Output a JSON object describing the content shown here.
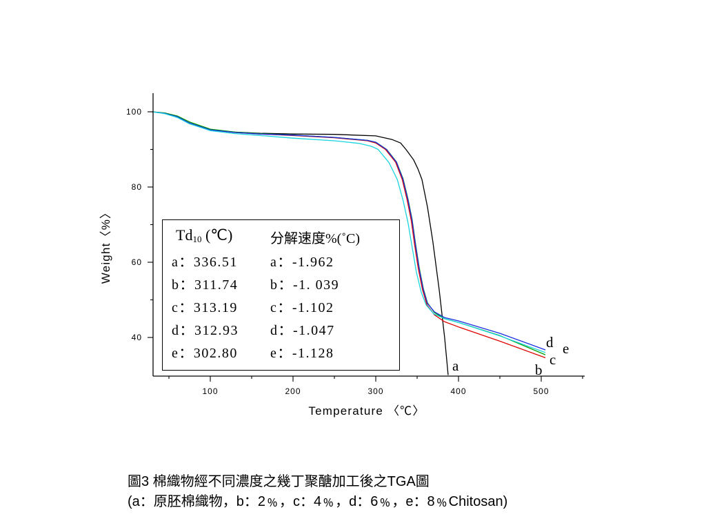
{
  "chart_data": {
    "type": "line",
    "title": "",
    "xlabel": "Temperature 〈℃〉",
    "ylabel": "Weight〈%〉",
    "xlim": [
      30,
      552
    ],
    "ylim": [
      30,
      105
    ],
    "x_ticks": [
      100,
      200,
      300,
      400,
      500
    ],
    "y_ticks": [
      40,
      60,
      80,
      100
    ],
    "grid": false,
    "legend": "curve labels at line ends",
    "series": [
      {
        "name": "a",
        "color": "#000000",
        "x": [
          30,
          45,
          60,
          75,
          100,
          130,
          160,
          200,
          250,
          300,
          320,
          330,
          336.5,
          345.8,
          351,
          355.8,
          362.5,
          369,
          376.7,
          383.3,
          387.5
        ],
        "y": [
          100,
          99.6,
          98.6,
          96.8,
          95.2,
          94.6,
          94.3,
          94.1,
          94.0,
          93.6,
          92.6,
          91.7,
          90.0,
          87.2,
          84.8,
          82.0,
          74.7,
          65.5,
          52.7,
          39.8,
          30.0
        ]
      },
      {
        "name": "b",
        "color": "#e00000",
        "x": [
          30,
          45,
          60,
          75,
          100,
          130,
          160,
          200,
          250,
          290,
          300,
          311.7,
          324,
          332,
          338,
          343,
          347,
          351.5,
          356.5,
          362,
          371,
          383,
          400,
          450,
          505
        ],
        "y": [
          100,
          99.6,
          98.7,
          97.0,
          95.2,
          94.5,
          94.1,
          93.7,
          93.1,
          92.3,
          91.7,
          90.0,
          86.6,
          82.0,
          76.5,
          71.0,
          64.6,
          58.2,
          52.7,
          48.6,
          46.0,
          44.2,
          42.8,
          39.0,
          34.6
        ]
      },
      {
        "name": "c",
        "color": "#00a000",
        "x": [
          30,
          45,
          60,
          75,
          100,
          130,
          160,
          200,
          250,
          290,
          300,
          313.2,
          325,
          333,
          339,
          344,
          348,
          352.5,
          357.5,
          362.5,
          371,
          383,
          400,
          450,
          505
        ],
        "y": [
          100,
          99.7,
          98.9,
          97.3,
          95.4,
          94.6,
          94.2,
          93.8,
          93.2,
          92.4,
          91.9,
          90.0,
          86.7,
          82.2,
          76.8,
          71.3,
          65.0,
          58.6,
          53.0,
          49.2,
          46.6,
          45.0,
          44.0,
          40.5,
          35.4
        ]
      },
      {
        "name": "d",
        "color": "#1a2ee0",
        "x": [
          30,
          45,
          60,
          75,
          100,
          130,
          160,
          200,
          250,
          290,
          300,
          312.9,
          325,
          333,
          339,
          344,
          348,
          352.5,
          357.5,
          362.5,
          371,
          383,
          400,
          450,
          505
        ],
        "y": [
          100,
          99.6,
          98.7,
          97.0,
          95.2,
          94.5,
          94.1,
          93.8,
          93.2,
          92.4,
          91.9,
          90.0,
          86.6,
          82.0,
          76.5,
          71.0,
          64.6,
          58.2,
          52.7,
          49.0,
          46.8,
          45.3,
          44.4,
          41.1,
          36.7
        ]
      },
      {
        "name": "e",
        "color": "#18d4e0",
        "x": [
          30,
          45,
          60,
          75,
          100,
          130,
          160,
          200,
          250,
          280,
          295,
          302.8,
          316,
          326,
          333,
          339,
          344,
          349,
          355,
          361,
          370,
          383,
          400,
          450,
          505
        ],
        "y": [
          100,
          99.5,
          98.5,
          96.8,
          95.0,
          94.2,
          93.7,
          93.0,
          92.3,
          91.6,
          90.8,
          90.0,
          86.5,
          82.0,
          76.5,
          70.5,
          64.0,
          57.5,
          52.0,
          48.6,
          46.3,
          45.0,
          44.0,
          40.4,
          36.0
        ]
      }
    ]
  },
  "table": {
    "header": {
      "td_main": "Td",
      "td_sub": "10",
      "td_unit": " (℃)",
      "rate": "分解速度%(˚C)"
    },
    "rows": [
      {
        "td": "a：336.51",
        "rate": "a：-1.962"
      },
      {
        "td": "b：311.74",
        "rate": "b：-1. 039"
      },
      {
        "td": "c：313.19",
        "rate": "c：-1.102"
      },
      {
        "td": "d：312.93",
        "rate": "d：-1.047"
      },
      {
        "td": "e：302.80",
        "rate": "e：-1.128"
      }
    ]
  },
  "caption": {
    "line1": "圖3 棉織物經不同濃度之幾丁聚醣加工後之TGA圖",
    "line2": "(a：原胚棉織物，b：2﹪，c：4﹪，d：6﹪，e：8﹪Chitosan)"
  }
}
